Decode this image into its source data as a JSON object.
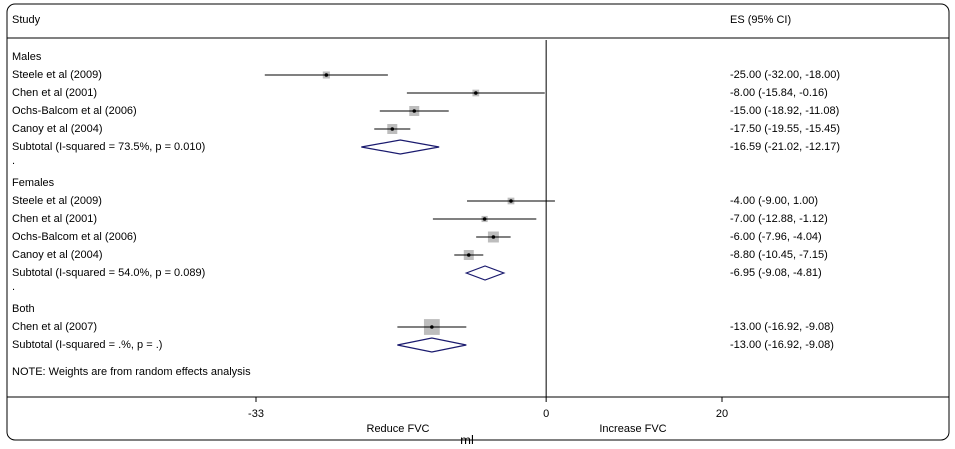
{
  "chart_data": {
    "type": "forest",
    "header_study": "Study",
    "header_es": "ES (95% CI)",
    "xlim": [
      -33,
      20
    ],
    "xticks": [
      -33,
      0,
      20
    ],
    "xlabel": "ml",
    "left_label": "Reduce FVC",
    "right_label": "Increase FVC",
    "note": "NOTE: Weights are from random effects analysis",
    "groups": [
      {
        "name": "Males",
        "rows": [
          {
            "label": "Steele et al (2009)",
            "es": -25.0,
            "ci": [
              -32.0,
              -18.0
            ],
            "es_label": "-25.00 (-32.00, -18.00)",
            "weight": 2
          },
          {
            "label": "Chen et al (2001)",
            "es": -8.0,
            "ci": [
              -15.84,
              -0.16
            ],
            "es_label": "-8.00 (-15.84, -0.16)",
            "weight": 1.8
          },
          {
            "label": "Ochs-Balcom et al (2006)",
            "es": -15.0,
            "ci": [
              -18.92,
              -11.08
            ],
            "es_label": "-15.00 (-18.92, -11.08)",
            "weight": 4
          },
          {
            "label": "Canoy et al (2004)",
            "es": -17.5,
            "ci": [
              -19.55,
              -15.45
            ],
            "es_label": "-17.50 (-19.55, -15.45)",
            "weight": 4
          }
        ],
        "subtotal": {
          "label": "Subtotal  (I-squared = 73.5%, p = 0.010)",
          "es": -16.59,
          "ci": [
            -21.02,
            -12.17
          ],
          "es_label": "-16.59 (-21.02, -12.17)"
        },
        "separator": "."
      },
      {
        "name": "Females",
        "rows": [
          {
            "label": "Steele et al (2009)",
            "es": -4.0,
            "ci": [
              -9.0,
              1.0
            ],
            "es_label": "-4.00 (-9.00, 1.00)",
            "weight": 1.8
          },
          {
            "label": "Chen et al (2001)",
            "es": -7.0,
            "ci": [
              -12.88,
              -1.12
            ],
            "es_label": "-7.00 (-12.88, -1.12)",
            "weight": 1.5
          },
          {
            "label": "Ochs-Balcom et al (2006)",
            "es": -6.0,
            "ci": [
              -7.96,
              -4.04
            ],
            "es_label": "-6.00 (-7.96, -4.04)",
            "weight": 4.8
          },
          {
            "label": "Canoy et al (2004)",
            "es": -8.8,
            "ci": [
              -10.45,
              -7.15
            ],
            "es_label": "-8.80 (-10.45, -7.15)",
            "weight": 4
          }
        ],
        "subtotal": {
          "label": "Subtotal  (I-squared = 54.0%, p = 0.089)",
          "es": -6.95,
          "ci": [
            -9.08,
            -4.81
          ],
          "es_label": "-6.95 (-9.08, -4.81)"
        },
        "separator": "."
      },
      {
        "name": "Both",
        "rows": [
          {
            "label": "Chen et al (2007)",
            "es": -13.0,
            "ci": [
              -16.92,
              -9.08
            ],
            "es_label": "-13.00 (-16.92, -9.08)",
            "weight": 10
          }
        ],
        "subtotal": {
          "label": "Subtotal  (I-squared = .%, p = .)",
          "es": -13.0,
          "ci": [
            -16.92,
            -9.08
          ],
          "es_label": "-13.00 (-16.92, -9.08)"
        }
      }
    ]
  }
}
